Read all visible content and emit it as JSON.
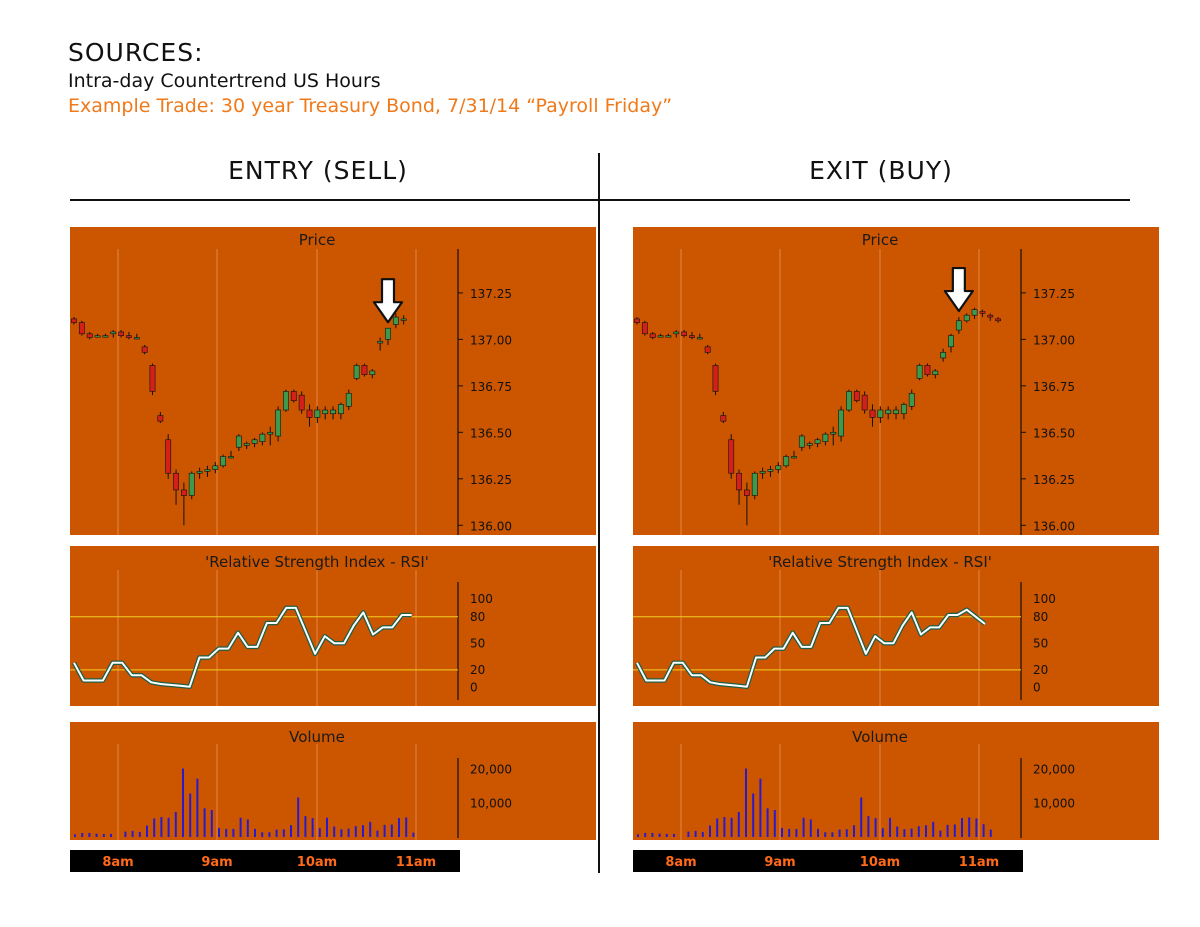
{
  "header": {
    "title": "SOURCES:",
    "subtitle": "Intra-day Countertrend US Hours",
    "example": "Example Trade: 30 year Treasury Bond, 7/31/14 “Payroll Friday”"
  },
  "colors": {
    "panel": "#cc5500",
    "grid": "#e0884a",
    "up": "#3d9a4d",
    "down": "#d41f1a",
    "rsi_line": "#ffffff",
    "rsi_outline": "#1f5e48",
    "rsi_ref": "#f0d020",
    "volume": "#2a1acc",
    "time_bar": "#000000",
    "time_text": "#ff6a1a",
    "example_text": "#f07a1a"
  },
  "chart_data": [
    {
      "type": "candlestick",
      "name": "entry",
      "column_title": "ENTRY (SELL)",
      "arrow_at_index": 40,
      "time_labels": [
        "8am",
        "9am",
        "10am",
        "11am"
      ],
      "price": {
        "title": "Price",
        "ylim": [
          135.98,
          137.4
        ],
        "ticks": [
          137.25,
          137.0,
          136.75,
          136.5,
          136.25,
          136.0
        ],
        "tick_labels": [
          "137.25",
          "137.00",
          "136.75",
          "136.50",
          "136.25",
          "136.00"
        ],
        "candles": [
          [
            137.11,
            137.12,
            137.08,
            137.09
          ],
          [
            137.09,
            137.1,
            137.02,
            137.03
          ],
          [
            137.03,
            137.04,
            137.0,
            137.01
          ],
          [
            137.02,
            137.03,
            137.01,
            137.02
          ],
          [
            137.02,
            137.03,
            137.01,
            137.02
          ],
          [
            137.03,
            137.05,
            137.01,
            137.04
          ],
          [
            137.04,
            137.05,
            137.01,
            137.02
          ],
          [
            137.02,
            137.04,
            137.0,
            137.01
          ],
          [
            137.01,
            137.03,
            137.0,
            137.01
          ],
          [
            136.96,
            136.97,
            136.92,
            136.93
          ],
          [
            136.86,
            136.87,
            136.7,
            136.72
          ],
          [
            136.59,
            136.61,
            136.55,
            136.56
          ],
          [
            136.46,
            136.49,
            136.25,
            136.28
          ],
          [
            136.28,
            136.3,
            136.11,
            136.19
          ],
          [
            136.19,
            136.23,
            136.0,
            136.16
          ],
          [
            136.16,
            136.29,
            136.14,
            136.28
          ],
          [
            136.28,
            136.31,
            136.25,
            136.29
          ],
          [
            136.29,
            136.32,
            136.26,
            136.3
          ],
          [
            136.3,
            136.34,
            136.28,
            136.32
          ],
          [
            136.32,
            136.38,
            136.31,
            136.37
          ],
          [
            136.37,
            136.4,
            136.36,
            136.37
          ],
          [
            136.42,
            136.49,
            136.4,
            136.48
          ],
          [
            136.43,
            136.45,
            136.41,
            136.44
          ],
          [
            136.44,
            136.47,
            136.42,
            136.46
          ],
          [
            136.45,
            136.5,
            136.43,
            136.49
          ],
          [
            136.49,
            136.53,
            136.43,
            136.5
          ],
          [
            136.48,
            136.64,
            136.45,
            136.62
          ],
          [
            136.62,
            136.73,
            136.61,
            136.72
          ],
          [
            136.72,
            136.73,
            136.66,
            136.67
          ],
          [
            136.7,
            136.72,
            136.6,
            136.62
          ],
          [
            136.62,
            136.65,
            136.53,
            136.58
          ],
          [
            136.58,
            136.64,
            136.55,
            136.62
          ],
          [
            136.6,
            136.64,
            136.57,
            136.62
          ],
          [
            136.6,
            136.64,
            136.57,
            136.62
          ],
          [
            136.6,
            136.66,
            136.57,
            136.65
          ],
          [
            136.64,
            136.73,
            136.62,
            136.71
          ],
          [
            136.79,
            136.87,
            136.78,
            136.86
          ],
          [
            136.86,
            136.87,
            136.8,
            136.81
          ],
          [
            136.81,
            136.84,
            136.79,
            136.83
          ],
          [
            136.98,
            137.01,
            136.94,
            136.99
          ],
          [
            137.0,
            137.06,
            136.97,
            137.06
          ],
          [
            137.08,
            137.14,
            137.06,
            137.12
          ],
          [
            137.11,
            137.13,
            137.08,
            137.11
          ]
        ]
      },
      "rsi": {
        "title": "'Relative Strength Index - RSI'",
        "ylim": [
          -5,
          108
        ],
        "ticks": [
          100,
          80,
          50,
          20,
          0
        ],
        "tick_labels": [
          "100",
          "80",
          "50",
          "20",
          "0"
        ],
        "reference_lines": [
          80,
          20
        ],
        "values": [
          28,
          8,
          8,
          8,
          28,
          28,
          14,
          14,
          6,
          4,
          3,
          2,
          1,
          34,
          34,
          44,
          44,
          62,
          46,
          46,
          73,
          73,
          90,
          90,
          64,
          38,
          58,
          50,
          50,
          70,
          85,
          60,
          68,
          68,
          82,
          82
        ]
      },
      "volume": {
        "title": "Volume",
        "ylim": [
          0,
          24000
        ],
        "ticks": [
          20000,
          10000
        ],
        "tick_labels": [
          "20,000",
          "10,000"
        ],
        "values": [
          800,
          1200,
          1200,
          1000,
          900,
          900,
          0,
          1600,
          1800,
          1500,
          3400,
          5500,
          5900,
          5700,
          7400,
          20300,
          12900,
          17300,
          8500,
          8000,
          2700,
          2400,
          2400,
          5700,
          5200,
          2400,
          1400,
          1400,
          2200,
          2300,
          3500,
          11700,
          6200,
          5600,
          2600,
          5700,
          3100,
          2300,
          2500,
          3200,
          3500,
          4500,
          1900,
          3600,
          3700,
          5600,
          5800,
          1300
        ]
      }
    },
    {
      "type": "candlestick",
      "name": "exit",
      "column_title": "EXIT (BUY)",
      "arrow_at_index": 41,
      "time_labels": [
        "8am",
        "9am",
        "10am",
        "11am"
      ],
      "price": {
        "title": "Price",
        "ylim": [
          135.98,
          137.4
        ],
        "ticks": [
          137.25,
          137.0,
          136.75,
          136.5,
          136.25,
          136.0
        ],
        "tick_labels": [
          "137.25",
          "137.00",
          "136.75",
          "136.50",
          "136.25",
          "136.00"
        ],
        "candles": [
          [
            137.11,
            137.12,
            137.08,
            137.09
          ],
          [
            137.09,
            137.1,
            137.02,
            137.03
          ],
          [
            137.03,
            137.04,
            137.0,
            137.01
          ],
          [
            137.02,
            137.03,
            137.01,
            137.02
          ],
          [
            137.02,
            137.03,
            137.01,
            137.02
          ],
          [
            137.03,
            137.05,
            137.01,
            137.04
          ],
          [
            137.04,
            137.05,
            137.01,
            137.02
          ],
          [
            137.02,
            137.04,
            137.0,
            137.01
          ],
          [
            137.01,
            137.03,
            137.0,
            137.01
          ],
          [
            136.96,
            136.97,
            136.92,
            136.93
          ],
          [
            136.86,
            136.87,
            136.7,
            136.72
          ],
          [
            136.59,
            136.61,
            136.55,
            136.56
          ],
          [
            136.46,
            136.49,
            136.25,
            136.28
          ],
          [
            136.28,
            136.3,
            136.11,
            136.19
          ],
          [
            136.19,
            136.23,
            136.0,
            136.16
          ],
          [
            136.16,
            136.29,
            136.14,
            136.28
          ],
          [
            136.28,
            136.31,
            136.25,
            136.29
          ],
          [
            136.29,
            136.32,
            136.26,
            136.3
          ],
          [
            136.3,
            136.34,
            136.28,
            136.32
          ],
          [
            136.32,
            136.38,
            136.31,
            136.37
          ],
          [
            136.37,
            136.4,
            136.36,
            136.37
          ],
          [
            136.42,
            136.49,
            136.4,
            136.48
          ],
          [
            136.43,
            136.45,
            136.41,
            136.44
          ],
          [
            136.44,
            136.47,
            136.42,
            136.46
          ],
          [
            136.45,
            136.5,
            136.43,
            136.49
          ],
          [
            136.49,
            136.53,
            136.43,
            136.5
          ],
          [
            136.48,
            136.64,
            136.45,
            136.62
          ],
          [
            136.62,
            136.73,
            136.61,
            136.72
          ],
          [
            136.72,
            136.73,
            136.66,
            136.67
          ],
          [
            136.7,
            136.72,
            136.6,
            136.62
          ],
          [
            136.62,
            136.65,
            136.53,
            136.58
          ],
          [
            136.58,
            136.64,
            136.55,
            136.62
          ],
          [
            136.6,
            136.64,
            136.57,
            136.62
          ],
          [
            136.6,
            136.64,
            136.57,
            136.62
          ],
          [
            136.6,
            136.66,
            136.57,
            136.65
          ],
          [
            136.64,
            136.73,
            136.62,
            136.71
          ],
          [
            136.79,
            136.87,
            136.78,
            136.86
          ],
          [
            136.86,
            136.87,
            136.8,
            136.81
          ],
          [
            136.81,
            136.84,
            136.79,
            136.83
          ],
          [
            136.9,
            136.95,
            136.88,
            136.93
          ],
          [
            136.96,
            137.03,
            136.93,
            137.02
          ],
          [
            137.05,
            137.12,
            137.03,
            137.1
          ],
          [
            137.1,
            137.14,
            137.09,
            137.13
          ],
          [
            137.13,
            137.17,
            137.11,
            137.16
          ],
          [
            137.15,
            137.16,
            137.12,
            137.14
          ],
          [
            137.13,
            137.14,
            137.1,
            137.12
          ],
          [
            137.11,
            137.12,
            137.09,
            137.1
          ]
        ]
      },
      "rsi": {
        "title": "'Relative Strength Index - RSI'",
        "ylim": [
          -5,
          108
        ],
        "ticks": [
          100,
          80,
          50,
          20,
          0
        ],
        "tick_labels": [
          "100",
          "80",
          "50",
          "20",
          "0"
        ],
        "reference_lines": [
          80,
          20
        ],
        "values": [
          28,
          8,
          8,
          8,
          28,
          28,
          14,
          14,
          6,
          4,
          3,
          2,
          1,
          34,
          34,
          44,
          44,
          62,
          46,
          46,
          73,
          73,
          90,
          90,
          64,
          38,
          58,
          50,
          50,
          70,
          85,
          60,
          68,
          68,
          82,
          82,
          88,
          80,
          72
        ]
      },
      "volume": {
        "title": "Volume",
        "ylim": [
          0,
          24000
        ],
        "ticks": [
          20000,
          10000
        ],
        "tick_labels": [
          "20,000",
          "10,000"
        ],
        "values": [
          800,
          1200,
          1200,
          1000,
          900,
          900,
          0,
          1600,
          1800,
          1500,
          3400,
          5500,
          5900,
          5700,
          7400,
          20300,
          12900,
          17300,
          8500,
          8000,
          2700,
          2400,
          2400,
          5700,
          5200,
          2400,
          1400,
          1400,
          2200,
          2300,
          3500,
          11700,
          6200,
          5600,
          2600,
          5700,
          3100,
          2300,
          2500,
          3200,
          3500,
          4500,
          1900,
          3600,
          3700,
          5600,
          5800,
          5500,
          3800,
          2200
        ]
      }
    }
  ]
}
